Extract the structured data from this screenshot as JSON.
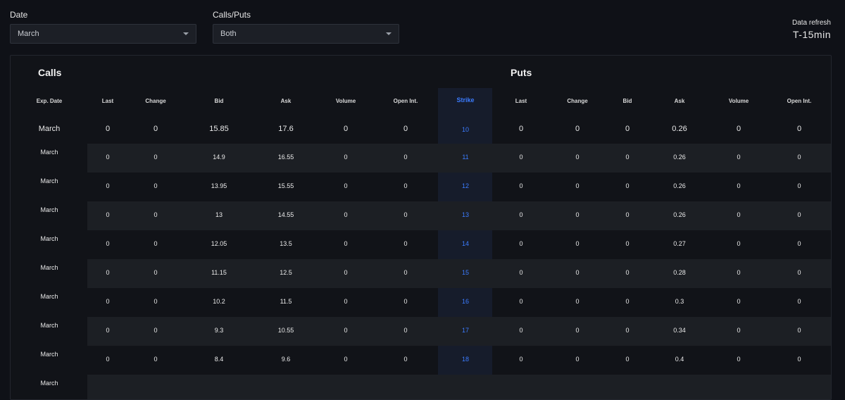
{
  "filters": {
    "date_label": "Date",
    "date_value": "March",
    "callsputs_label": "Calls/Puts",
    "callsputs_value": "Both",
    "refresh_title": "Data refresh",
    "refresh_value": "T-15min"
  },
  "table": {
    "calls_title": "Calls",
    "puts_title": "Puts",
    "headers": {
      "exp_date": "Exp. Date",
      "call_last": "Last",
      "call_change": "Change",
      "call_bid": "Bid",
      "call_ask": "Ask",
      "call_volume": "Volume",
      "call_open_int": "Open Int.",
      "strike": "Strike",
      "put_last": "Last",
      "put_change": "Change",
      "put_bid": "Bid",
      "put_ask": "Ask",
      "put_volume": "Volume",
      "put_open_int": "Open Int."
    },
    "rows": [
      {
        "exp": "March",
        "c_last": "0",
        "c_change": "0",
        "c_bid": "15.85",
        "c_ask": "17.6",
        "c_vol": "0",
        "c_oi": "0",
        "strike": "10",
        "p_last": "0",
        "p_change": "0",
        "p_bid": "0",
        "p_ask": "0.26",
        "p_vol": "0",
        "p_oi": "0"
      },
      {
        "exp": "March",
        "c_last": "0",
        "c_change": "0",
        "c_bid": "14.9",
        "c_ask": "16.55",
        "c_vol": "0",
        "c_oi": "0",
        "strike": "11",
        "p_last": "0",
        "p_change": "0",
        "p_bid": "0",
        "p_ask": "0.26",
        "p_vol": "0",
        "p_oi": "0"
      },
      {
        "exp": "March",
        "c_last": "0",
        "c_change": "0",
        "c_bid": "13.95",
        "c_ask": "15.55",
        "c_vol": "0",
        "c_oi": "0",
        "strike": "12",
        "p_last": "0",
        "p_change": "0",
        "p_bid": "0",
        "p_ask": "0.26",
        "p_vol": "0",
        "p_oi": "0"
      },
      {
        "exp": "March",
        "c_last": "0",
        "c_change": "0",
        "c_bid": "13",
        "c_ask": "14.55",
        "c_vol": "0",
        "c_oi": "0",
        "strike": "13",
        "p_last": "0",
        "p_change": "0",
        "p_bid": "0",
        "p_ask": "0.26",
        "p_vol": "0",
        "p_oi": "0"
      },
      {
        "exp": "March",
        "c_last": "0",
        "c_change": "0",
        "c_bid": "12.05",
        "c_ask": "13.5",
        "c_vol": "0",
        "c_oi": "0",
        "strike": "14",
        "p_last": "0",
        "p_change": "0",
        "p_bid": "0",
        "p_ask": "0.27",
        "p_vol": "0",
        "p_oi": "0"
      },
      {
        "exp": "March",
        "c_last": "0",
        "c_change": "0",
        "c_bid": "11.15",
        "c_ask": "12.5",
        "c_vol": "0",
        "c_oi": "0",
        "strike": "15",
        "p_last": "0",
        "p_change": "0",
        "p_bid": "0",
        "p_ask": "0.28",
        "p_vol": "0",
        "p_oi": "0"
      },
      {
        "exp": "March",
        "c_last": "0",
        "c_change": "0",
        "c_bid": "10.2",
        "c_ask": "11.5",
        "c_vol": "0",
        "c_oi": "0",
        "strike": "16",
        "p_last": "0",
        "p_change": "0",
        "p_bid": "0",
        "p_ask": "0.3",
        "p_vol": "0",
        "p_oi": "0"
      },
      {
        "exp": "March",
        "c_last": "0",
        "c_change": "0",
        "c_bid": "9.3",
        "c_ask": "10.55",
        "c_vol": "0",
        "c_oi": "0",
        "strike": "17",
        "p_last": "0",
        "p_change": "0",
        "p_bid": "0",
        "p_ask": "0.34",
        "p_vol": "0",
        "p_oi": "0"
      },
      {
        "exp": "March",
        "c_last": "0",
        "c_change": "0",
        "c_bid": "8.4",
        "c_ask": "9.6",
        "c_vol": "0",
        "c_oi": "0",
        "strike": "18",
        "p_last": "0",
        "p_change": "0",
        "p_bid": "0",
        "p_ask": "0.4",
        "p_vol": "0",
        "p_oi": "0"
      },
      {
        "exp": "March",
        "c_last": "",
        "c_change": "",
        "c_bid": "",
        "c_ask": "",
        "c_vol": "",
        "c_oi": "",
        "strike": "",
        "p_last": "",
        "p_change": "",
        "p_bid": "",
        "p_ask": "",
        "p_vol": "",
        "p_oi": ""
      }
    ]
  }
}
